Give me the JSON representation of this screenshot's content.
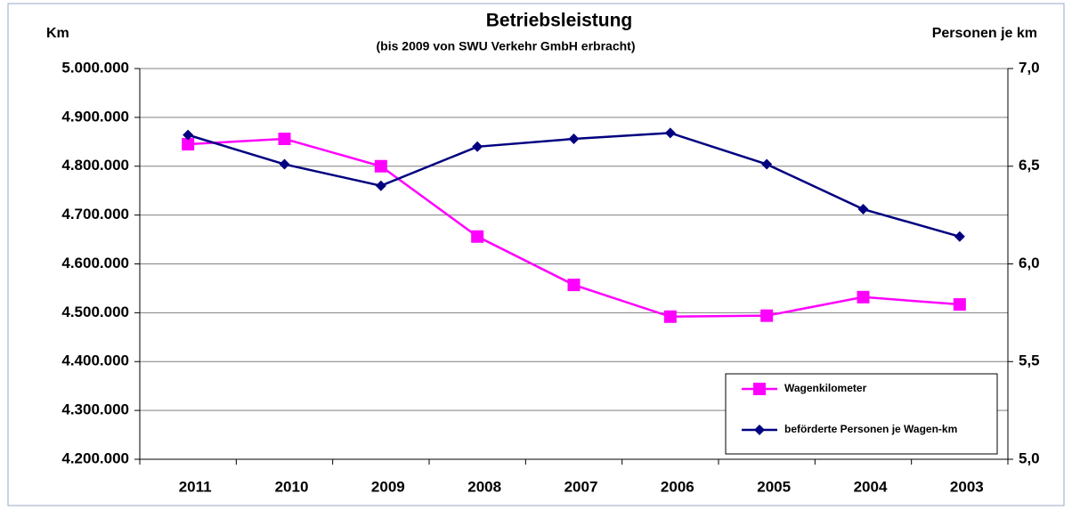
{
  "chart_data": {
    "type": "line",
    "title": "Betriebsleistung",
    "subtitle": "(bis 2009 von SWU Verkehr GmbH erbracht)",
    "y_label": "Km",
    "y2_label": "Personen je km",
    "categories": [
      "2011",
      "2010",
      "2009",
      "2008",
      "2007",
      "2006",
      "2005",
      "2004",
      "2003"
    ],
    "series": [
      {
        "name": "Wagenkilometer",
        "color": "#ff00ff",
        "marker": "square",
        "axis": "y",
        "values": [
          4845000,
          4856000,
          4800000,
          4656000,
          4557000,
          4492000,
          4494000,
          4532000,
          4517000
        ]
      },
      {
        "name": "beförderte Personen je Wagen-km",
        "color": "#000080",
        "marker": "diamond",
        "axis": "y2",
        "values": [
          6.66,
          6.51,
          6.4,
          6.6,
          6.64,
          6.67,
          6.51,
          6.28,
          6.14
        ]
      }
    ],
    "ylim": [
      4200000,
      5000000
    ],
    "yticks": [
      {
        "value": 4200000,
        "label": "4.200.000"
      },
      {
        "value": 4300000,
        "label": "4.300.000"
      },
      {
        "value": 4400000,
        "label": "4.400.000"
      },
      {
        "value": 4500000,
        "label": "4.500.000"
      },
      {
        "value": 4600000,
        "label": "4.600.000"
      },
      {
        "value": 4700000,
        "label": "4.700.000"
      },
      {
        "value": 4800000,
        "label": "4.800.000"
      },
      {
        "value": 4900000,
        "label": "4.900.000"
      },
      {
        "value": 5000000,
        "label": "5.000.000"
      }
    ],
    "y2lim": [
      5,
      7
    ],
    "y2ticks": [
      {
        "value": 5,
        "label": "5,0"
      },
      {
        "value": 5.5,
        "label": "5,5"
      },
      {
        "value": 6,
        "label": "6,0"
      },
      {
        "value": 6.5,
        "label": "6,5"
      },
      {
        "value": 7,
        "label": "7,0"
      }
    ],
    "grid": true,
    "legend": "lower right"
  }
}
